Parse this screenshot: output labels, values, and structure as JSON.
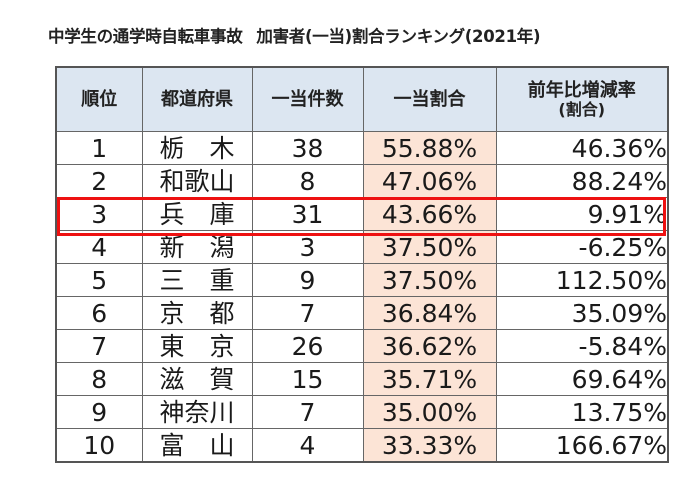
{
  "title": {
    "main": "中学生の通学時自転車事故",
    "sub": "加害者(一当)割合ランキング(2021年)"
  },
  "table": {
    "headers": {
      "rank": "順位",
      "prefecture": "都道府県",
      "count": "一当件数",
      "share": "一当割合",
      "change_line1": "前年比増減率",
      "change_line2": "(割合)"
    },
    "rows": [
      {
        "rank": "1",
        "prefecture": "栃　木",
        "count": "38",
        "share": "55.88%",
        "change": "46.36%"
      },
      {
        "rank": "2",
        "prefecture": "和歌山",
        "count": "8",
        "share": "47.06%",
        "change": "88.24%"
      },
      {
        "rank": "3",
        "prefecture": "兵　庫",
        "count": "31",
        "share": "43.66%",
        "change": "9.91%"
      },
      {
        "rank": "4",
        "prefecture": "新　潟",
        "count": "3",
        "share": "37.50%",
        "change": "-6.25%"
      },
      {
        "rank": "5",
        "prefecture": "三　重",
        "count": "9",
        "share": "37.50%",
        "change": "112.50%"
      },
      {
        "rank": "6",
        "prefecture": "京　都",
        "count": "7",
        "share": "36.84%",
        "change": "35.09%"
      },
      {
        "rank": "7",
        "prefecture": "東　京",
        "count": "26",
        "share": "36.62%",
        "change": "-5.84%"
      },
      {
        "rank": "8",
        "prefecture": "滋　賀",
        "count": "15",
        "share": "35.71%",
        "change": "69.64%"
      },
      {
        "rank": "9",
        "prefecture": "神奈川",
        "count": "7",
        "share": "35.00%",
        "change": "13.75%"
      },
      {
        "rank": "10",
        "prefecture": "富　山",
        "count": "4",
        "share": "33.33%",
        "change": "166.67%"
      }
    ],
    "highlighted_row_rank": "3"
  },
  "colors": {
    "header_bg": "#dce6f1",
    "share_column_bg": "#fce4d6",
    "highlight_border": "#ee1111",
    "grid_line": "#666666"
  }
}
